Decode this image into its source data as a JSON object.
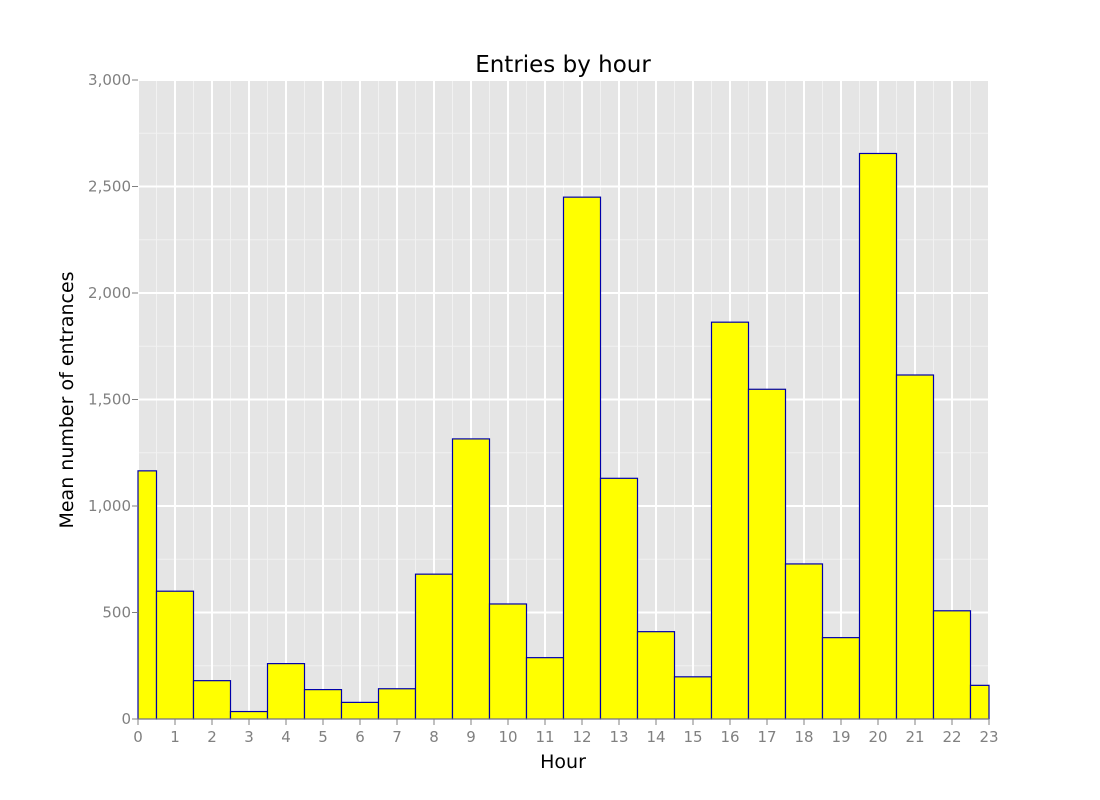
{
  "chart_data": {
    "type": "bar",
    "title": "Entries by hour",
    "xlabel": "Hour",
    "ylabel": "Mean number of entrances",
    "x": [
      0,
      1,
      2,
      3,
      4,
      5,
      6,
      7,
      8,
      9,
      10,
      11,
      12,
      13,
      14,
      15,
      16,
      17,
      18,
      19,
      20,
      21,
      22,
      23
    ],
    "values": [
      1165,
      600,
      180,
      35,
      260,
      138,
      78,
      142,
      680,
      1315,
      540,
      288,
      2450,
      1130,
      410,
      198,
      1863,
      1548,
      728,
      382,
      2655,
      1615,
      508,
      158
    ],
    "xlim": [
      0,
      23
    ],
    "ylim": [
      0,
      3000
    ],
    "yticks": [
      0,
      500,
      1000,
      1500,
      2000,
      2500,
      3000
    ],
    "ytick_labels": [
      "0",
      "500",
      "1,000",
      "1,500",
      "2,000",
      "2,500",
      "3,000"
    ],
    "xticks": [
      0,
      1,
      2,
      3,
      4,
      5,
      6,
      7,
      8,
      9,
      10,
      11,
      12,
      13,
      14,
      15,
      16,
      17,
      18,
      19,
      20,
      21,
      22,
      23
    ],
    "xtick_labels": [
      "0",
      "1",
      "2",
      "3",
      "4",
      "5",
      "6",
      "7",
      "8",
      "9",
      "10",
      "11",
      "12",
      "13",
      "14",
      "15",
      "16",
      "17",
      "18",
      "19",
      "20",
      "21",
      "22",
      "23"
    ],
    "grid": true,
    "colors": {
      "bar_fill": "#ffff00",
      "bar_edge": "#0000aa",
      "panel_bg": "#e5e5e5",
      "grid_major": "#ffffff",
      "grid_minor": "#f2f2f2",
      "tick_text": "#808080"
    }
  }
}
